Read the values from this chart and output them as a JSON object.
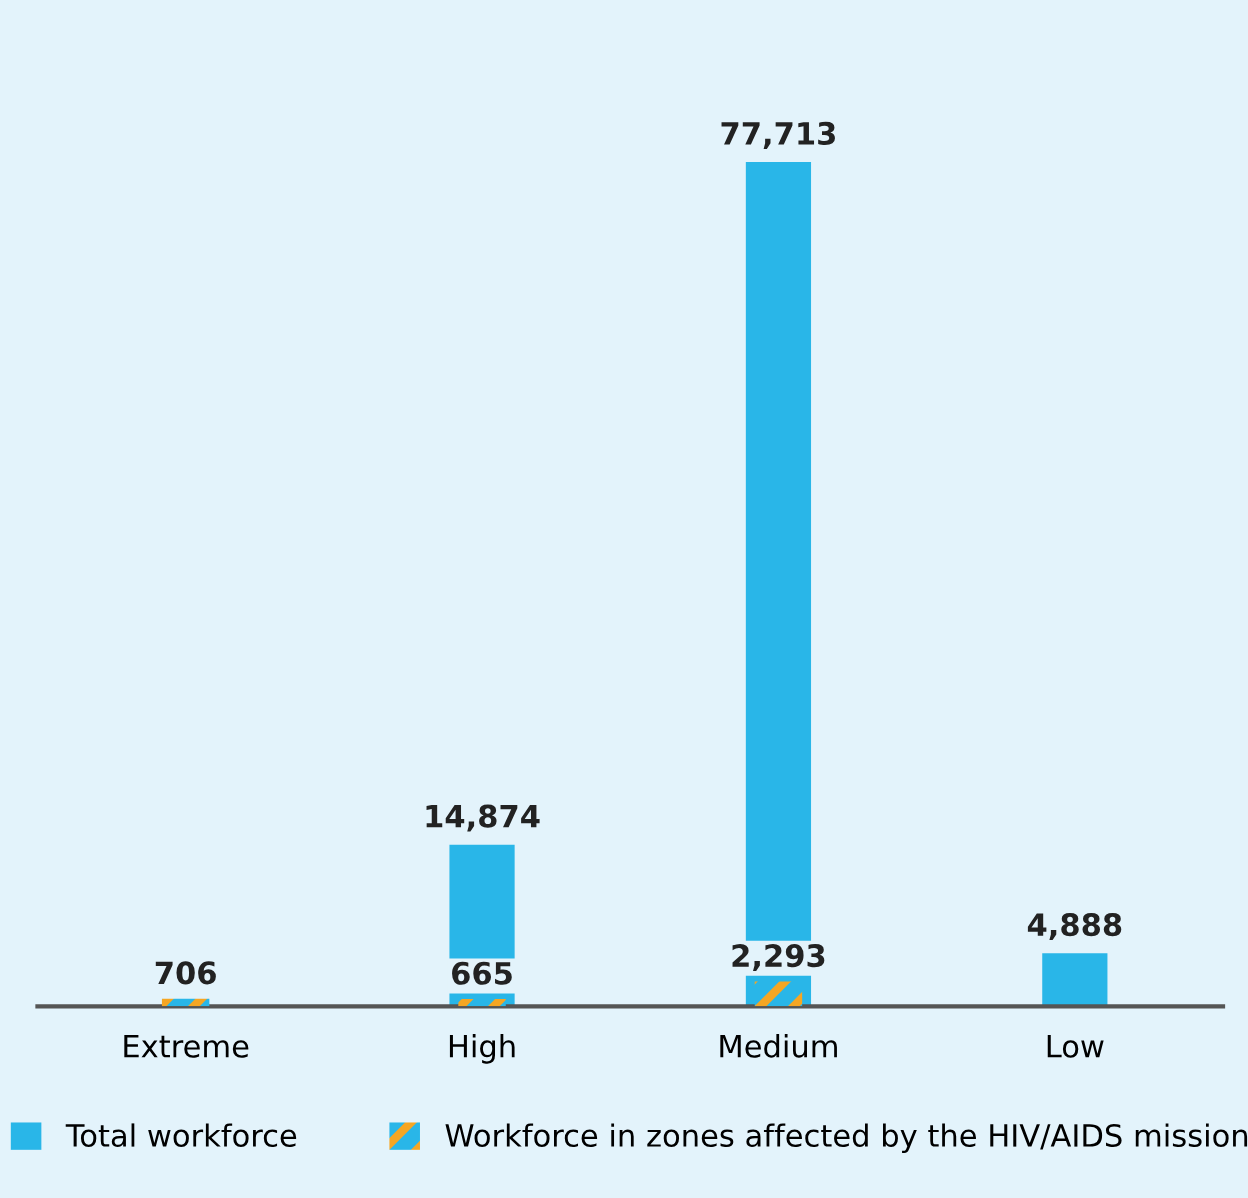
{
  "chart_data": {
    "type": "bar",
    "categories": [
      "Extreme",
      "High",
      "Medium",
      "Low"
    ],
    "series": [
      {
        "name": "Total workforce",
        "color": "#29b6e8",
        "values": [
          null,
          14874,
          77713,
          4888
        ],
        "value_labels": [
          null,
          "14,874",
          "77,713",
          "4,888"
        ]
      },
      {
        "name": "Workforce in zones affected by the HIV/AIDS mission",
        "color": "#f5a623",
        "values": [
          706,
          665,
          2293,
          null
        ],
        "value_labels": [
          "706",
          "665",
          "2,293",
          null
        ]
      }
    ],
    "tick_labels": "x",
    "grid": false,
    "legend": "bottom"
  }
}
